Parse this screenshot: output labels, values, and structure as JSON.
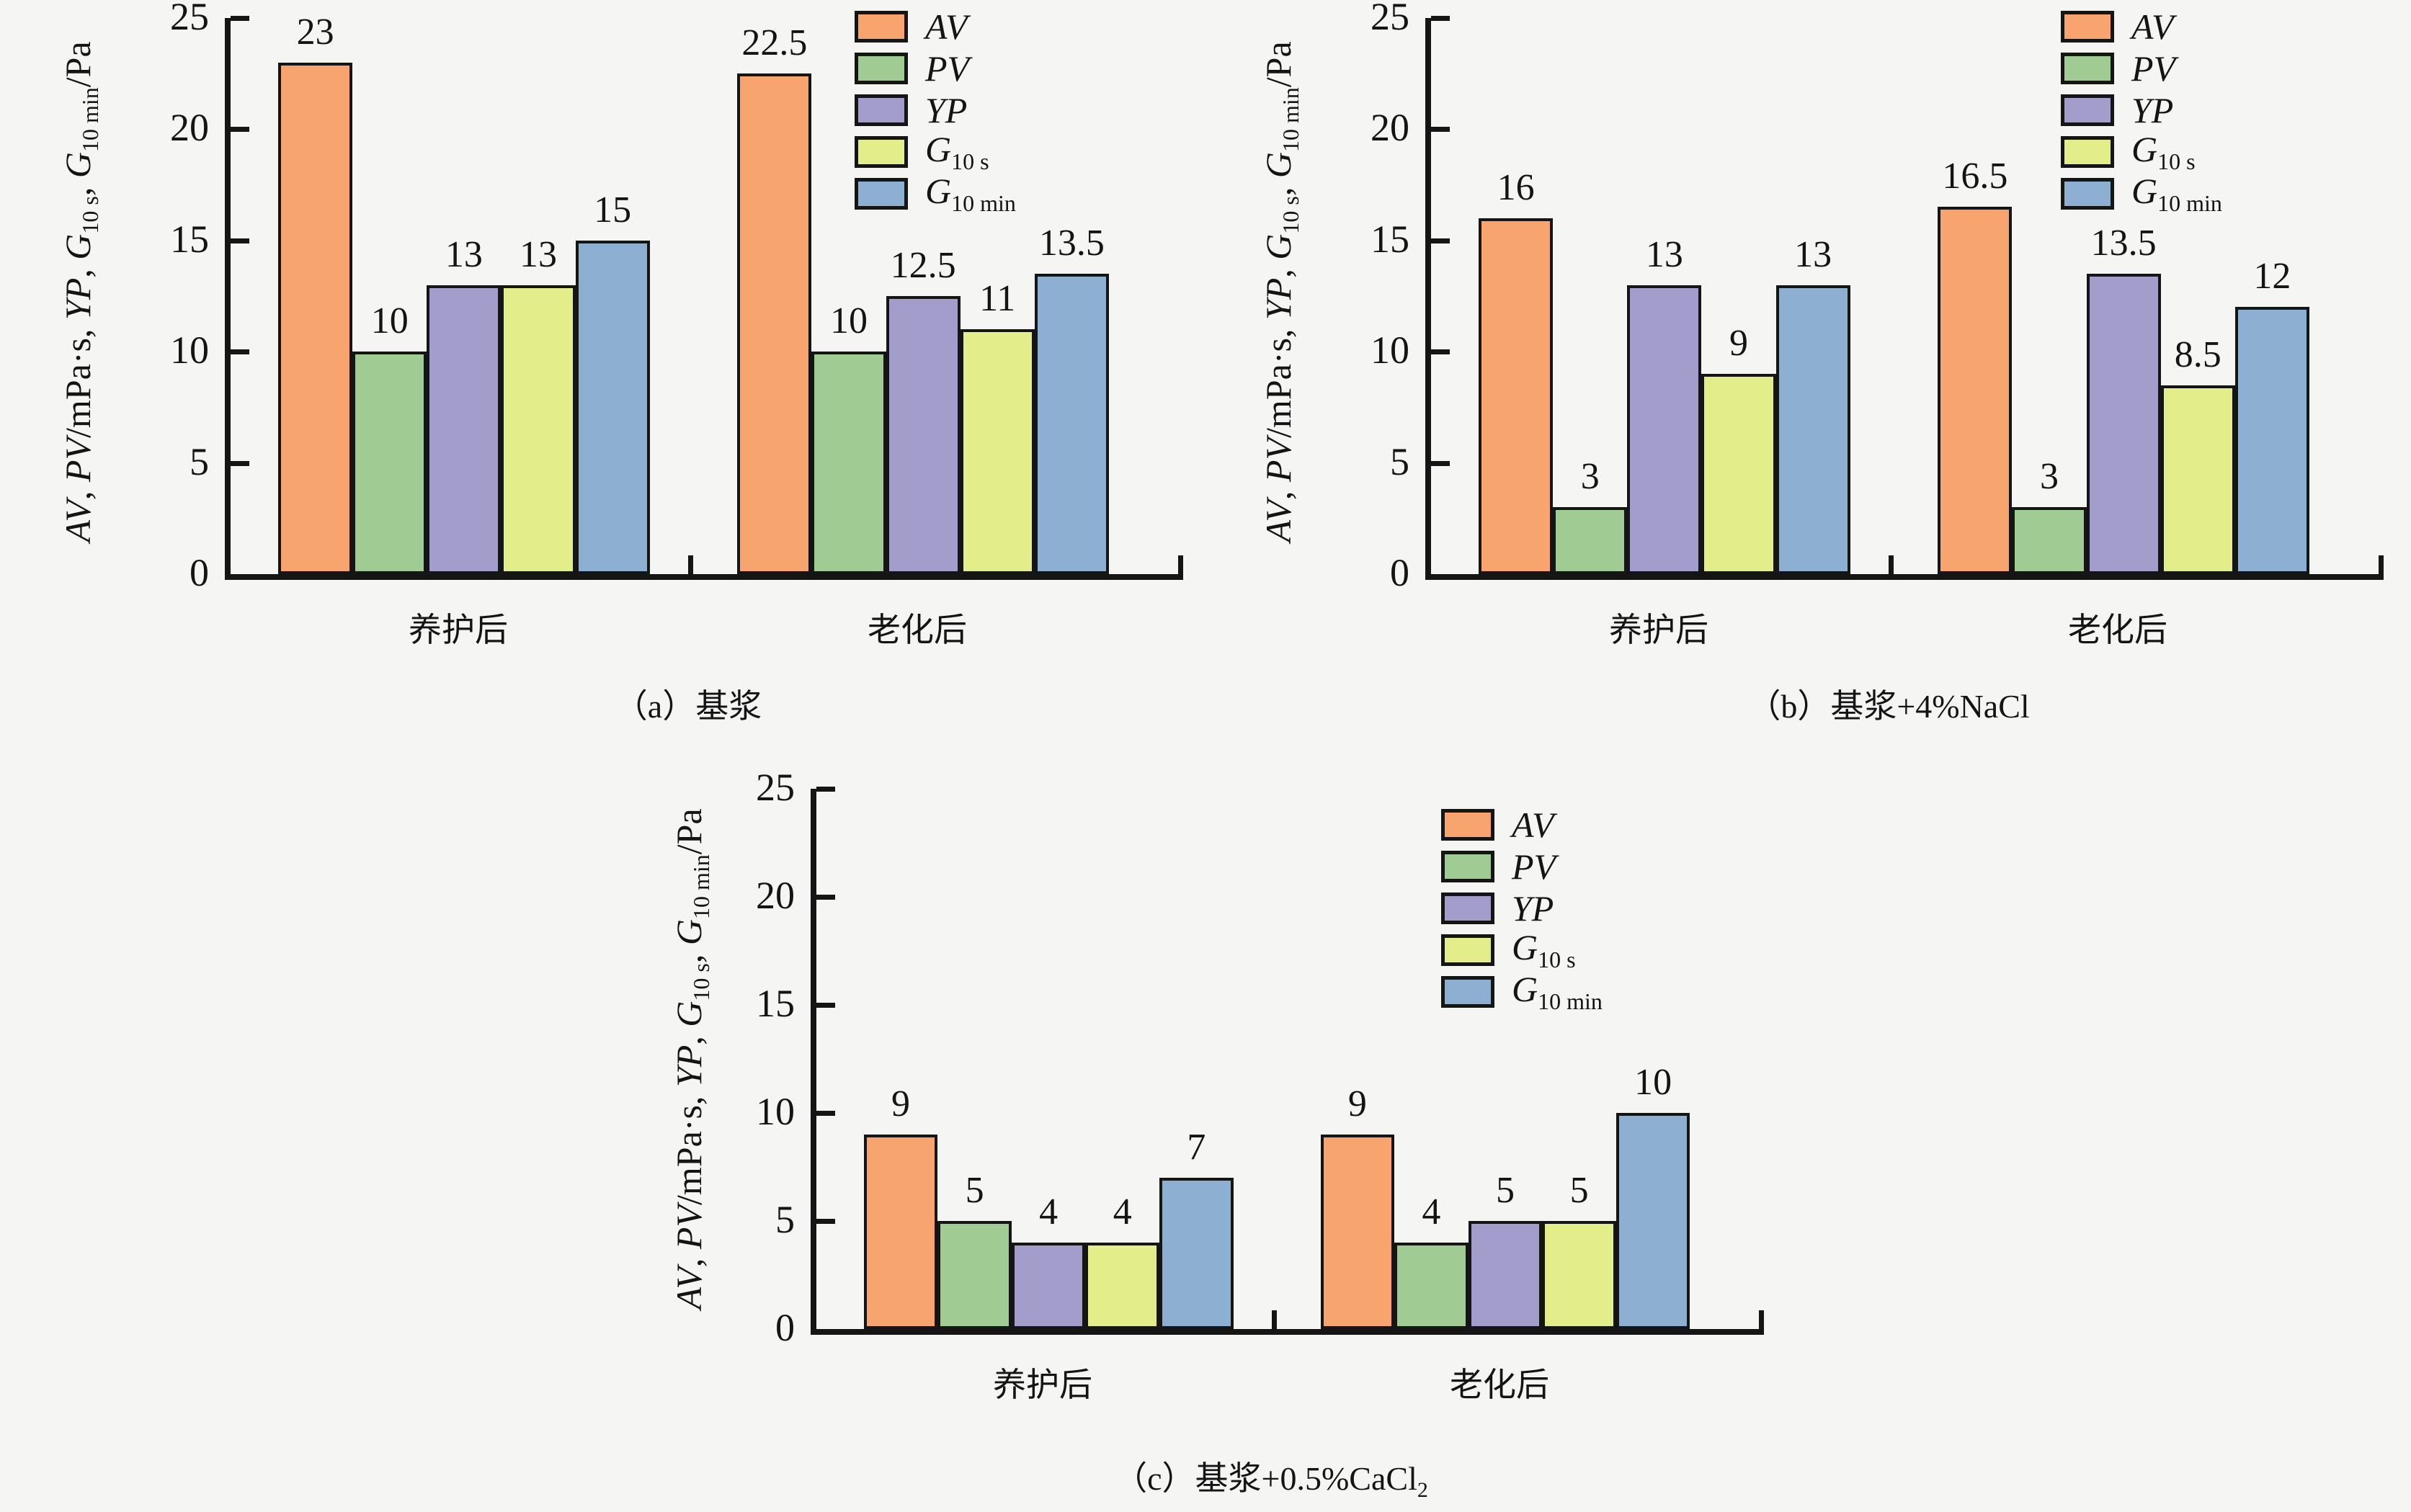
{
  "colors": {
    "background": "#f5f5f4",
    "axis": "#151515",
    "text": "#141414",
    "av": "#f7a46e",
    "pv": "#a0cb92",
    "yp": "#a39dcb",
    "g10s": "#e3ee8b",
    "g10min": "#8db0d2"
  },
  "chart_data": {
    "type": "bar",
    "ylim": [
      0,
      25
    ],
    "yticks": [
      0,
      5,
      10,
      15,
      20,
      25
    ],
    "grid": false,
    "legend_position": "top-right-inside",
    "ylabel_text": "AV, PV/mPa·s, YP, G10 s, G10 min/Pa",
    "ylabel_parts": [
      {
        "t": "AV",
        "i": true
      },
      {
        "t": ", ",
        "i": false
      },
      {
        "t": "PV",
        "i": true
      },
      {
        "t": "/mPa·s, ",
        "i": false
      },
      {
        "t": "YP",
        "i": true
      },
      {
        "t": ", ",
        "i": false
      },
      {
        "t": "G",
        "i": true
      },
      {
        "t": "10 s",
        "sub": true
      },
      {
        "t": ", ",
        "i": false
      },
      {
        "t": "G",
        "i": true
      },
      {
        "t": "10 min",
        "sub": true
      },
      {
        "t": "/Pa",
        "i": false
      }
    ],
    "legend": [
      {
        "label": "AV",
        "sub": "",
        "color": "#f7a46e"
      },
      {
        "label": "PV",
        "sub": "",
        "color": "#a0cb92"
      },
      {
        "label": "YP",
        "sub": "",
        "color": "#a39dcb"
      },
      {
        "label": "G",
        "sub": "10 s",
        "color": "#e3ee8b"
      },
      {
        "label": "G",
        "sub": "10 min",
        "color": "#8db0d2"
      }
    ],
    "charts": [
      {
        "name": "a",
        "caption": "（a）基浆",
        "caption_sub": "",
        "categories": [
          "养护后",
          "老化后"
        ],
        "series": [
          {
            "name": "AV",
            "values": [
              23,
              22.5
            ]
          },
          {
            "name": "PV",
            "values": [
              10,
              10
            ]
          },
          {
            "name": "YP",
            "values": [
              13,
              12.5
            ]
          },
          {
            "name": "G10 s",
            "values": [
              13,
              11
            ]
          },
          {
            "name": "G10 min",
            "values": [
              15,
              13.5
            ]
          }
        ]
      },
      {
        "name": "b",
        "caption": "（b）基浆+4%NaCl",
        "caption_sub": "",
        "categories": [
          "养护后",
          "老化后"
        ],
        "series": [
          {
            "name": "AV",
            "values": [
              16,
              16.5
            ]
          },
          {
            "name": "PV",
            "values": [
              3,
              3
            ]
          },
          {
            "name": "YP",
            "values": [
              13,
              13.5
            ]
          },
          {
            "name": "G10 s",
            "values": [
              9,
              8.5
            ]
          },
          {
            "name": "G10 min",
            "values": [
              13,
              12
            ]
          }
        ]
      },
      {
        "name": "c",
        "caption": "（c）基浆+0.5%CaCl",
        "caption_sub": "2",
        "categories": [
          "养护后",
          "老化后"
        ],
        "series": [
          {
            "name": "AV",
            "values": [
              9,
              9
            ]
          },
          {
            "name": "PV",
            "values": [
              5,
              4
            ]
          },
          {
            "name": "YP",
            "values": [
              4,
              5
            ]
          },
          {
            "name": "G10 s",
            "values": [
              4,
              5
            ]
          },
          {
            "name": "G10 min",
            "values": [
              7,
              10
            ]
          }
        ]
      }
    ]
  }
}
